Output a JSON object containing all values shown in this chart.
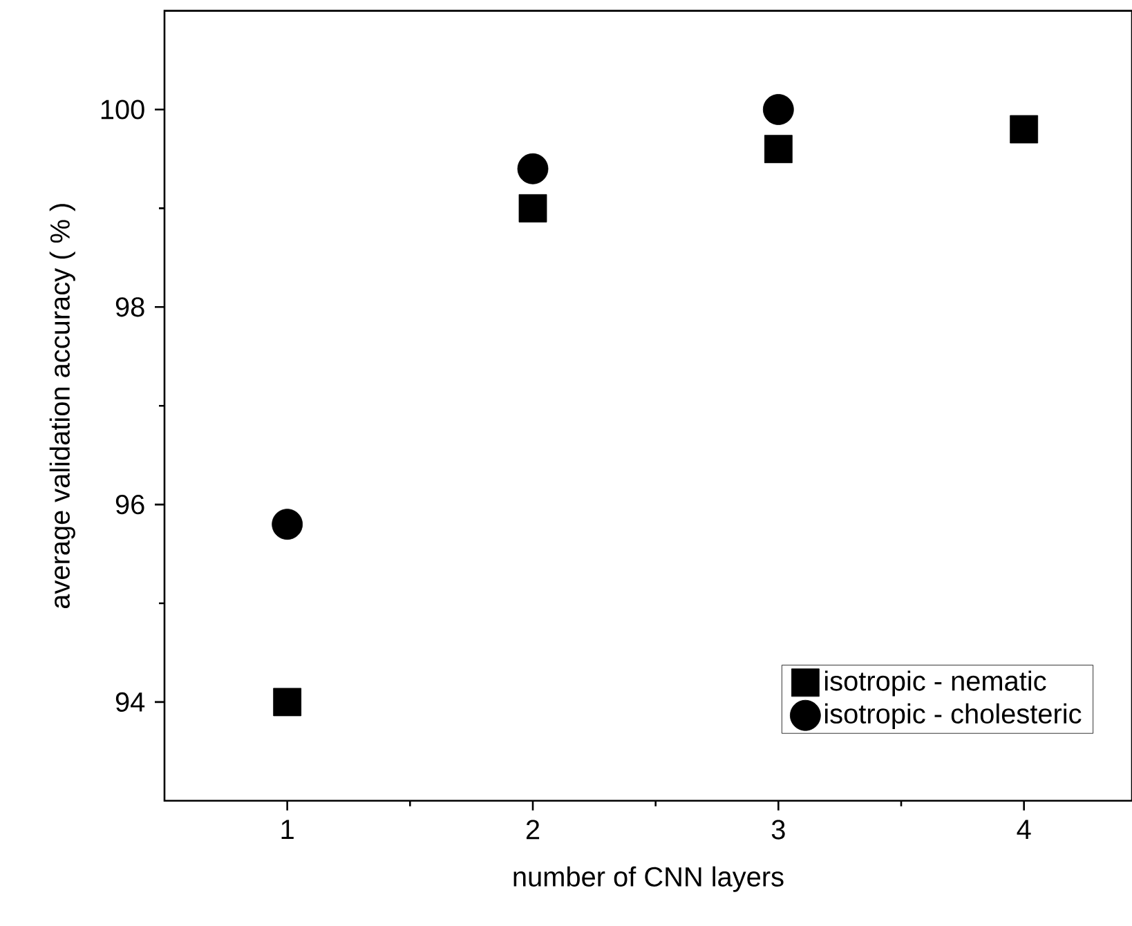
{
  "chart_data": {
    "type": "scatter",
    "xlabel": "number of CNN layers",
    "ylabel": "average validation accuracy  ( % )",
    "x": [
      1,
      2,
      3,
      4
    ],
    "series": [
      {
        "name": "isotropic - nematic",
        "color": "#000000",
        "marker": "square",
        "values": [
          94.0,
          99.0,
          99.6,
          99.8
        ]
      },
      {
        "name": "isotropic - cholesteric",
        "color": "#000000",
        "marker": "circle",
        "values": [
          95.8,
          99.4,
          100.0,
          null
        ]
      }
    ],
    "xlim": [
      0.5,
      4.44
    ],
    "ylim": [
      93,
      101
    ],
    "xticks": [
      1,
      2,
      3,
      4
    ],
    "yticks": [
      94,
      96,
      98,
      100
    ],
    "grid": false,
    "legend": "bottom right"
  }
}
